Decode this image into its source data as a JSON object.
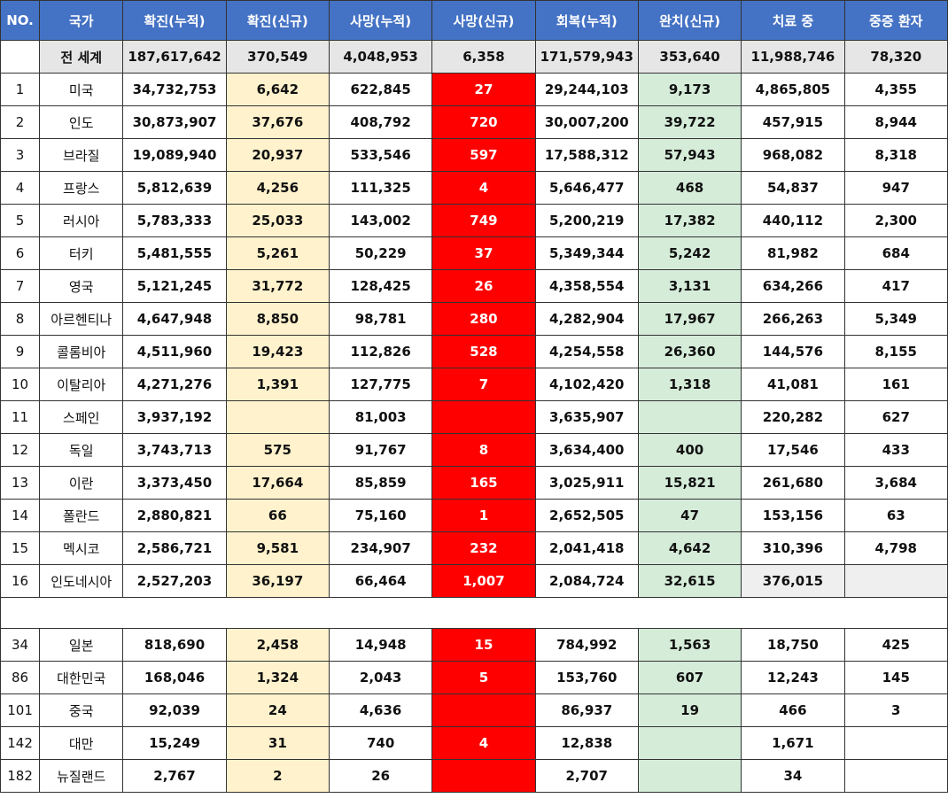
{
  "headers": [
    "NO.",
    "국가",
    "확진(누적)",
    "확진(신규)",
    "사망(누적)",
    "사망(신규)",
    "회복(누적)",
    "완치(신규)",
    "치료 중",
    "중증 환자"
  ],
  "world": {
    "name": "전 세계",
    "values": [
      "187,617,642",
      "370,549",
      "4,048,953",
      "6,358",
      "171,579,943",
      "353,640",
      "11,988,746",
      "78,320"
    ]
  },
  "top_rows": [
    {
      "no": "1",
      "country": "미국",
      "cases": "34,732,753",
      "new_cases": "6,642",
      "deaths": "622,845",
      "new_deaths": "27",
      "recovered": "29,244,103",
      "new_recovered": "9,173",
      "active": "4,865,805",
      "critical": "4,355"
    },
    {
      "no": "2",
      "country": "인도",
      "cases": "30,873,907",
      "new_cases": "37,676",
      "deaths": "408,792",
      "new_deaths": "720",
      "recovered": "30,007,200",
      "new_recovered": "39,722",
      "active": "457,915",
      "critical": "8,944"
    },
    {
      "no": "3",
      "country": "브라질",
      "cases": "19,089,940",
      "new_cases": "20,937",
      "deaths": "533,546",
      "new_deaths": "597",
      "recovered": "17,588,312",
      "new_recovered": "57,943",
      "active": "968,082",
      "critical": "8,318"
    },
    {
      "no": "4",
      "country": "프랑스",
      "cases": "5,812,639",
      "new_cases": "4,256",
      "deaths": "111,325",
      "new_deaths": "4",
      "recovered": "5,646,477",
      "new_recovered": "468",
      "active": "54,837",
      "critical": "947"
    },
    {
      "no": "5",
      "country": "러시아",
      "cases": "5,783,333",
      "new_cases": "25,033",
      "deaths": "143,002",
      "new_deaths": "749",
      "recovered": "5,200,219",
      "new_recovered": "17,382",
      "active": "440,112",
      "critical": "2,300"
    },
    {
      "no": "6",
      "country": "터키",
      "cases": "5,481,555",
      "new_cases": "5,261",
      "deaths": "50,229",
      "new_deaths": "37",
      "recovered": "5,349,344",
      "new_recovered": "5,242",
      "active": "81,982",
      "critical": "684"
    },
    {
      "no": "7",
      "country": "영국",
      "cases": "5,121,245",
      "new_cases": "31,772",
      "deaths": "128,425",
      "new_deaths": "26",
      "recovered": "4,358,554",
      "new_recovered": "3,131",
      "active": "634,266",
      "critical": "417"
    },
    {
      "no": "8",
      "country": "아르헨티나",
      "cases": "4,647,948",
      "new_cases": "8,850",
      "deaths": "98,781",
      "new_deaths": "280",
      "recovered": "4,282,904",
      "new_recovered": "17,967",
      "active": "266,263",
      "critical": "5,349"
    },
    {
      "no": "9",
      "country": "콜롬비아",
      "cases": "4,511,960",
      "new_cases": "19,423",
      "deaths": "112,826",
      "new_deaths": "528",
      "recovered": "4,254,558",
      "new_recovered": "26,360",
      "active": "144,576",
      "critical": "8,155"
    },
    {
      "no": "10",
      "country": "이탈리아",
      "cases": "4,271,276",
      "new_cases": "1,391",
      "deaths": "127,775",
      "new_deaths": "7",
      "recovered": "4,102,420",
      "new_recovered": "1,318",
      "active": "41,081",
      "critical": "161"
    },
    {
      "no": "11",
      "country": "스페인",
      "cases": "3,937,192",
      "new_cases": "",
      "deaths": "81,003",
      "new_deaths": "",
      "recovered": "3,635,907",
      "new_recovered": "",
      "active": "220,282",
      "critical": "627"
    },
    {
      "no": "12",
      "country": "독일",
      "cases": "3,743,713",
      "new_cases": "575",
      "deaths": "91,767",
      "new_deaths": "8",
      "recovered": "3,634,400",
      "new_recovered": "400",
      "active": "17,546",
      "critical": "433"
    },
    {
      "no": "13",
      "country": "이란",
      "cases": "3,373,450",
      "new_cases": "17,664",
      "deaths": "85,859",
      "new_deaths": "165",
      "recovered": "3,025,911",
      "new_recovered": "15,821",
      "active": "261,680",
      "critical": "3,684"
    },
    {
      "no": "14",
      "country": "폴란드",
      "cases": "2,880,821",
      "new_cases": "66",
      "deaths": "75,160",
      "new_deaths": "1",
      "recovered": "2,652,505",
      "new_recovered": "47",
      "active": "153,156",
      "critical": "63"
    },
    {
      "no": "15",
      "country": "멕시코",
      "cases": "2,586,721",
      "new_cases": "9,581",
      "deaths": "234,907",
      "new_deaths": "232",
      "recovered": "2,041,418",
      "new_recovered": "4,642",
      "active": "310,396",
      "critical": "4,798"
    },
    {
      "no": "16",
      "country": "인도네시아",
      "cases": "2,527,203",
      "new_cases": "36,197",
      "deaths": "66,464",
      "new_deaths": "1,007",
      "recovered": "2,084,724",
      "new_recovered": "32,615",
      "active": "376,015",
      "critical": ""
    }
  ],
  "bottom_rows": [
    {
      "no": "34",
      "country": "일본",
      "cases": "818,690",
      "new_cases": "2,458",
      "deaths": "14,948",
      "new_deaths": "15",
      "recovered": "784,992",
      "new_recovered": "1,563",
      "active": "18,750",
      "critical": "425"
    },
    {
      "no": "86",
      "country": "대한민국",
      "cases": "168,046",
      "new_cases": "1,324",
      "deaths": "2,043",
      "new_deaths": "5",
      "recovered": "153,760",
      "new_recovered": "607",
      "active": "12,243",
      "critical": "145"
    },
    {
      "no": "101",
      "country": "중국",
      "cases": "92,039",
      "new_cases": "24",
      "deaths": "4,636",
      "new_deaths": "",
      "recovered": "86,937",
      "new_recovered": "19",
      "active": "466",
      "critical": "3"
    },
    {
      "no": "142",
      "country": "대만",
      "cases": "15,249",
      "new_cases": "31",
      "deaths": "740",
      "new_deaths": "4",
      "recovered": "12,838",
      "new_recovered": "",
      "active": "1,671",
      "critical": ""
    },
    {
      "no": "182",
      "country": "뉴질랜드",
      "cases": "2,767",
      "new_cases": "2",
      "deaths": "26",
      "new_deaths": "",
      "recovered": "2,707",
      "new_recovered": "",
      "active": "34",
      "critical": ""
    }
  ],
  "colors": {
    "header_bg": "#4472c4",
    "new_cases_bg": "#fff2cc",
    "new_deaths_bg": "#ff0000",
    "new_recovered_bg": "#d5ecd9",
    "world_row_bg": "#e7e6e6"
  }
}
